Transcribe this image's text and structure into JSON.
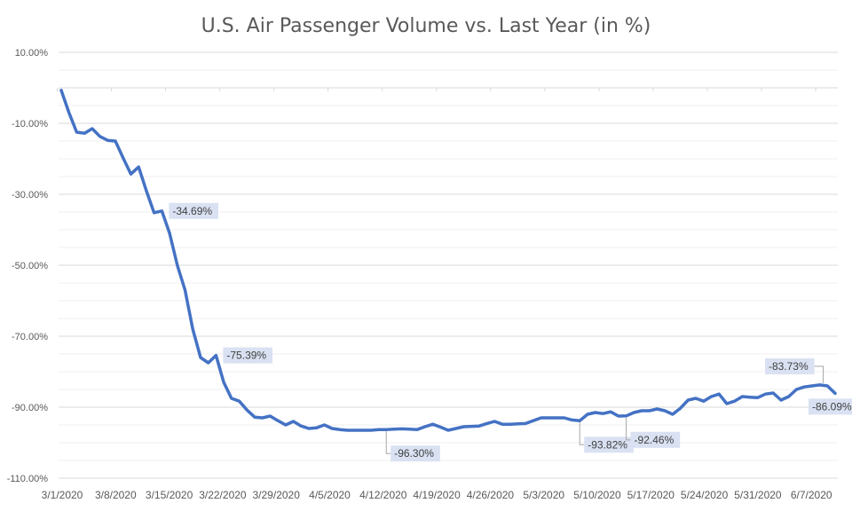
{
  "chart_data": {
    "type": "line",
    "title": "U.S. Air Passenger Volume vs. Last Year (in %)",
    "xlabel": "",
    "ylabel": "",
    "ylim": [
      -110,
      10
    ],
    "y_major_step": 20,
    "y_minor_step": 5,
    "grid": true,
    "legend": "none",
    "line_color": "#4472C4",
    "label_bg_color": "#D9E1F2",
    "start_date": "3/1/2020",
    "x_tick_labels": [
      "3/1/2020",
      "3/8/2020",
      "3/15/2020",
      "3/22/2020",
      "3/29/2020",
      "4/5/2020",
      "4/12/2020",
      "4/19/2020",
      "4/26/2020",
      "5/3/2020",
      "5/10/2020",
      "5/17/2020",
      "5/24/2020",
      "5/31/2020",
      "6/7/2020"
    ],
    "y_tick_labels": [
      "10.00%",
      "-10.00%",
      "-30.00%",
      "-50.00%",
      "-70.00%",
      "-90.00%",
      "-110.00%"
    ],
    "y_tick_values": [
      10,
      -10,
      -30,
      -50,
      -70,
      -90,
      -110
    ],
    "series": [
      {
        "name": "Air Passenger Volume vs. Last Year",
        "values": [
          -0.7,
          -7.0,
          -12.5,
          -12.8,
          -11.5,
          -13.7,
          -14.8,
          -15.0,
          -19.8,
          -24.3,
          -22.3,
          -29.0,
          -35.2,
          -34.69,
          -41.0,
          -50.0,
          -57.0,
          -68.0,
          -76.0,
          -77.5,
          -75.39,
          -83.0,
          -87.5,
          -88.3,
          -90.8,
          -92.8,
          -93.0,
          -92.5,
          -93.8,
          -95.0,
          -94.0,
          -95.3,
          -96.0,
          -95.8,
          -95.0,
          -96.0,
          -96.3,
          -96.5,
          -96.5,
          -96.5,
          -96.5,
          -96.3,
          -96.3,
          -96.2,
          -96.1,
          -96.2,
          -96.3,
          -95.5,
          -94.8,
          -95.6,
          -96.5,
          -96.0,
          -95.5,
          -95.4,
          -95.3,
          -94.6,
          -94.0,
          -94.8,
          -94.8,
          -94.7,
          -94.6,
          -93.8,
          -93.0,
          -93.0,
          -93.0,
          -93.0,
          -93.6,
          -93.82,
          -92.0,
          -91.5,
          -91.8,
          -91.3,
          -92.5,
          -92.46,
          -91.5,
          -91.0,
          -91.0,
          -90.5,
          -91.0,
          -92.0,
          -90.3,
          -88.0,
          -87.5,
          -88.3,
          -87.0,
          -86.3,
          -89.0,
          -88.3,
          -87.0,
          -87.2,
          -87.3,
          -86.3,
          -86.0,
          -88.0,
          -87.0,
          -85.0,
          -84.3,
          -84.0,
          -83.73,
          -84.0,
          -86.09
        ]
      }
    ],
    "annotations": [
      {
        "index": 13,
        "text": "-34.69%",
        "pos": "right"
      },
      {
        "index": 20,
        "text": "-75.39%",
        "pos": "right"
      },
      {
        "index": 42,
        "text": "-96.30%",
        "pos": "below-right"
      },
      {
        "index": 67,
        "text": "-93.82%",
        "pos": "below-right"
      },
      {
        "index": 73,
        "text": "-92.46%",
        "pos": "below-right"
      },
      {
        "index": 98,
        "text": "-83.73%",
        "pos": "above-left"
      },
      {
        "index": 100,
        "text": "-86.09%",
        "pos": "below"
      }
    ]
  }
}
